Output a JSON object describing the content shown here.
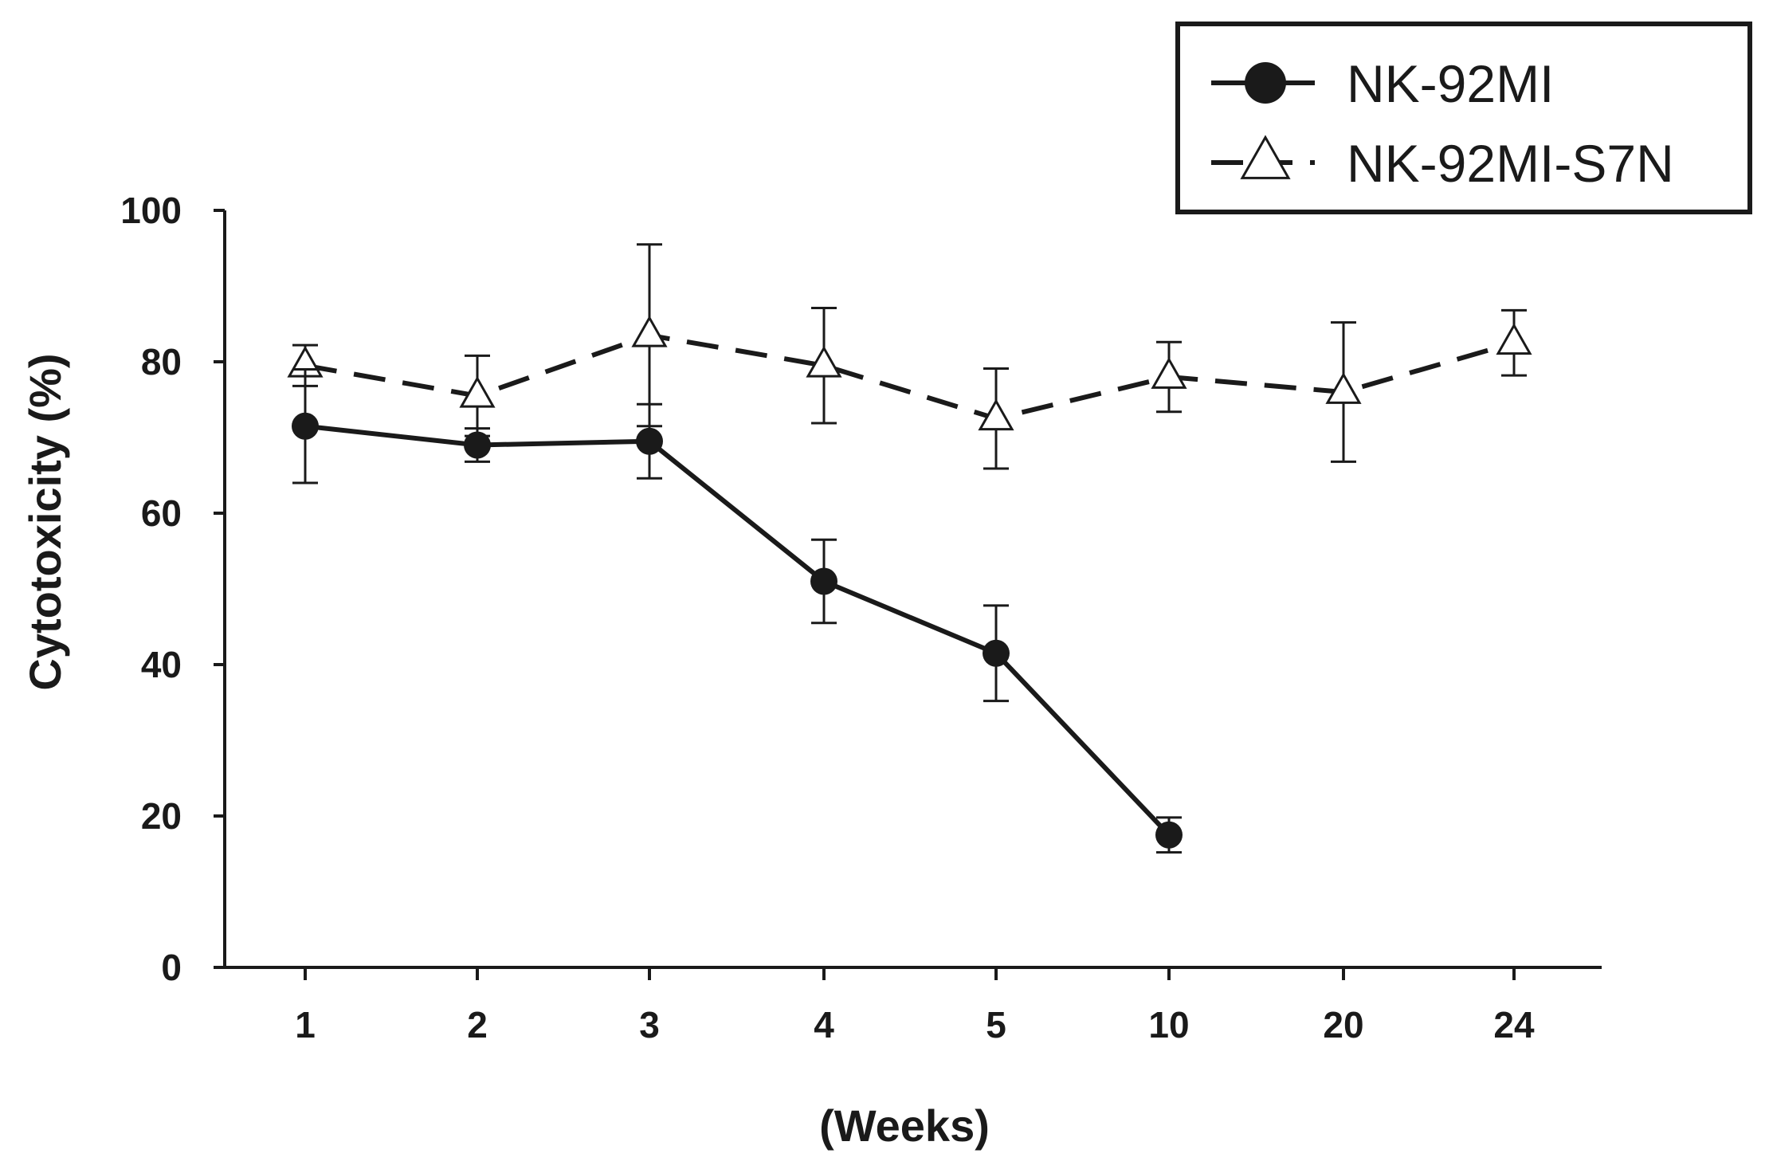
{
  "chart_data": {
    "type": "line",
    "title": "",
    "xlabel": "(Weeks)",
    "ylabel": "Cytotoxicity (%)",
    "categories": [
      "1",
      "2",
      "3",
      "4",
      "5",
      "10",
      "20",
      "24"
    ],
    "ylim": [
      0,
      100
    ],
    "yticks": [
      0,
      20,
      40,
      60,
      80,
      100
    ],
    "grid": false,
    "legend_position": "top-right",
    "series": [
      {
        "name": "NK-92MI",
        "values": [
          71.5,
          69,
          69.5,
          51,
          41.5,
          17.5,
          null,
          null
        ],
        "errors": [
          7.5,
          2.2,
          4.9,
          5.5,
          6.3,
          2.3,
          null,
          null
        ],
        "marker": "filled-circle",
        "line": "solid",
        "color": "#1a1a1a"
      },
      {
        "name": "NK-92MI-S7N",
        "values": [
          79.5,
          75.5,
          83.5,
          79.5,
          72.5,
          78,
          76,
          82.5
        ],
        "errors": [
          2.7,
          5.3,
          12,
          7.6,
          6.6,
          4.6,
          9.2,
          4.3
        ],
        "marker": "open-triangle",
        "line": "dashed",
        "color": "#1a1a1a"
      }
    ]
  }
}
